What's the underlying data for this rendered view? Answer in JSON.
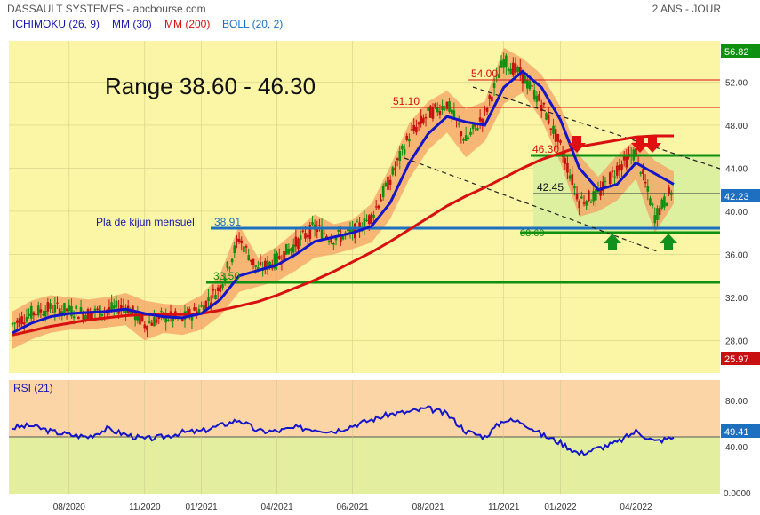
{
  "header": {
    "title": "DASSAULT SYSTEMES - abcbourse.com",
    "period": "2 ANS - JOUR",
    "legend": [
      {
        "label": "ICHIMOKU (26, 9)",
        "color": "#1515b0"
      },
      {
        "label": "MM (30)",
        "color": "#1515b0"
      },
      {
        "label": "MM (200)",
        "color": "#d81010"
      },
      {
        "label": "BOLL (20, 2)",
        "color": "#1e6fc0"
      }
    ]
  },
  "annotations": {
    "range_title": "Range 38.60 - 46.30",
    "kijun_label": "Pla de kijun mensuel",
    "kijun_value": "38.91",
    "level_54": "54.00",
    "level_5110": "51.10",
    "level_4630": "46.30",
    "level_4245": "42.45",
    "level_3860": "38.60",
    "level_335": "33.50"
  },
  "price_labels": {
    "last_high": "56.82",
    "last": "42.23",
    "last_low": "25.97"
  },
  "rsi": {
    "title": "RSI (21)",
    "last": "49.41",
    "ticks": [
      "80.00",
      "40.00",
      "0.0000"
    ]
  },
  "colors": {
    "price_bg": "#fbf6a6",
    "rsi_over": "#fbd5a6",
    "rsi_under": "#e3ef9f",
    "range_box": "#dcf0a0",
    "cloud": "#f5a063",
    "mm30": "#1515c8",
    "mm200": "#d81010",
    "green": "#109010",
    "kijun": "#1e6fc0",
    "candle_up": "#109010",
    "candle_down": "#c81010"
  },
  "chart_data": {
    "type": "line",
    "title": "DASSAULT SYSTEMES - abcbourse.com",
    "x_ticks": [
      "08/2020",
      "11/2020",
      "01/2021",
      "04/2021",
      "06/2021",
      "08/2021",
      "11/2021",
      "01/2022",
      "04/2022"
    ],
    "x_tick_index": [
      3,
      7,
      10,
      14,
      18,
      22,
      26,
      29,
      33
    ],
    "y_ticks": [
      28.0,
      32.0,
      36.0,
      40.0,
      44.0,
      48.0,
      52.0
    ],
    "ylim": [
      25.97,
      56.82
    ],
    "series": [
      {
        "name": "Close",
        "values": [
          29.5,
          30.5,
          31.0,
          30.8,
          30.5,
          30.8,
          31.2,
          29.5,
          30.2,
          30.0,
          31.0,
          33.0,
          37.5,
          34.5,
          35.5,
          37.0,
          38.5,
          37.5,
          38.0,
          39.5,
          43.0,
          47.0,
          49.0,
          50.0,
          46.5,
          49.0,
          54.0,
          52.5,
          50.0,
          46.0,
          41.0,
          41.5,
          44.0,
          45.5,
          39.5,
          42.2
        ]
      },
      {
        "name": "MM (30)",
        "values": [
          28.7,
          29.6,
          30.2,
          30.5,
          30.6,
          30.7,
          30.9,
          30.5,
          30.2,
          30.1,
          30.5,
          31.8,
          34.0,
          34.5,
          35.0,
          36.0,
          37.2,
          37.6,
          38.0,
          38.6,
          40.8,
          44.5,
          47.2,
          48.8,
          48.3,
          48.0,
          51.5,
          53.0,
          51.5,
          48.5,
          44.0,
          42.0,
          42.5,
          44.5,
          43.5,
          42.5
        ]
      },
      {
        "name": "MM (200)",
        "values": [
          28.5,
          28.9,
          29.3,
          29.6,
          29.9,
          30.1,
          30.3,
          30.4,
          30.4,
          30.4,
          30.5,
          30.8,
          31.2,
          31.6,
          32.2,
          32.9,
          33.6,
          34.4,
          35.3,
          36.2,
          37.2,
          38.3,
          39.4,
          40.5,
          41.4,
          42.2,
          43.1,
          44.0,
          44.8,
          45.4,
          46.0,
          46.3,
          46.6,
          46.9,
          47.0,
          47.0
        ]
      }
    ],
    "horizontal_levels": [
      54.0,
      51.1,
      46.3,
      42.45,
      38.91,
      38.6,
      33.5
    ],
    "rsi": {
      "name": "RSI (21)",
      "ylim": [
        0,
        100
      ],
      "values": [
        58,
        60,
        55,
        52,
        50,
        57,
        52,
        48,
        50,
        54,
        55,
        60,
        65,
        55,
        55,
        58,
        57,
        55,
        60,
        65,
        70,
        72,
        75,
        70,
        55,
        50,
        65,
        63,
        52,
        45,
        35,
        40,
        45,
        55,
        46,
        49.41
      ]
    }
  }
}
